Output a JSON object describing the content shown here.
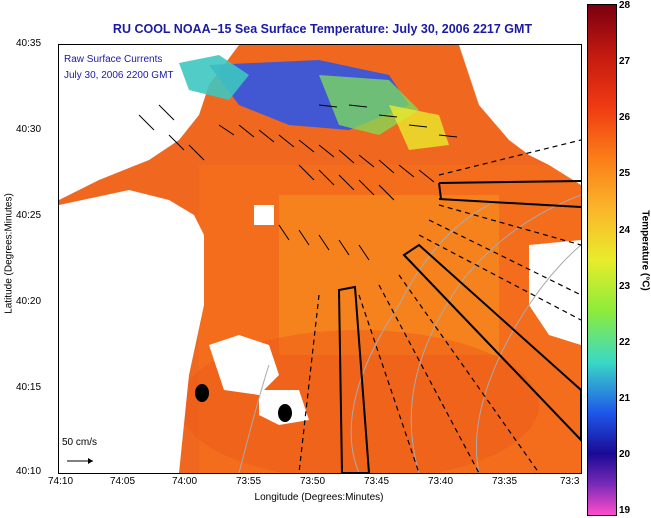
{
  "title": "RU COOL  NOAA–15  Sea Surface Temperature:  July 30, 2006 2217 GMT",
  "overlay": {
    "line1": "Raw Surface Currents",
    "line2": "July 30, 2006 2200 GMT"
  },
  "axes": {
    "x_label": "Longitude (Degrees:Minutes)",
    "y_label": "Latitude (Degrees:Minutes)",
    "x_ticks": [
      "74:10",
      "74:05",
      "74:00",
      "73:55",
      "73:50",
      "73:45",
      "73:40",
      "73:35",
      "73:3"
    ],
    "y_ticks": [
      "40:35",
      "40:30",
      "40:25",
      "40:20",
      "40:15",
      "40:10"
    ]
  },
  "colorbar": {
    "label": "Temperature (°C)",
    "ticks": [
      "28",
      "27",
      "26",
      "25",
      "24",
      "23",
      "22",
      "21",
      "20",
      "19"
    ],
    "min": 19,
    "max": 28
  },
  "scale": {
    "label": "50 cm/s"
  },
  "colors": {
    "title": "#1a1aa6",
    "warm": "#f05a1a",
    "cold": "#1e57ea",
    "land": "#ffffff",
    "arrow": "#000000",
    "contour": "#aaaaaa"
  },
  "map_elements": {
    "hf_radar_sites": 2,
    "transects": "solid and dashed survey lines"
  }
}
